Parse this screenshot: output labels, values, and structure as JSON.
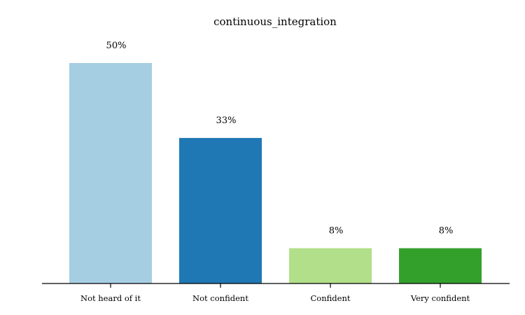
{
  "chart_data": {
    "type": "bar",
    "title": "continuous_integration",
    "xlabel": "",
    "ylabel": "",
    "categories": [
      "Not heard of it",
      "Not confident",
      "Confident",
      "Very confident"
    ],
    "values": [
      50,
      33,
      8,
      8
    ],
    "data_labels": [
      "50%",
      "33%",
      "8%",
      "8%"
    ],
    "colors": [
      "#a6cee3",
      "#1f78b4",
      "#b2df8a",
      "#33a02c"
    ],
    "ylim": [
      0,
      50
    ],
    "grid": false,
    "legend": "none"
  }
}
